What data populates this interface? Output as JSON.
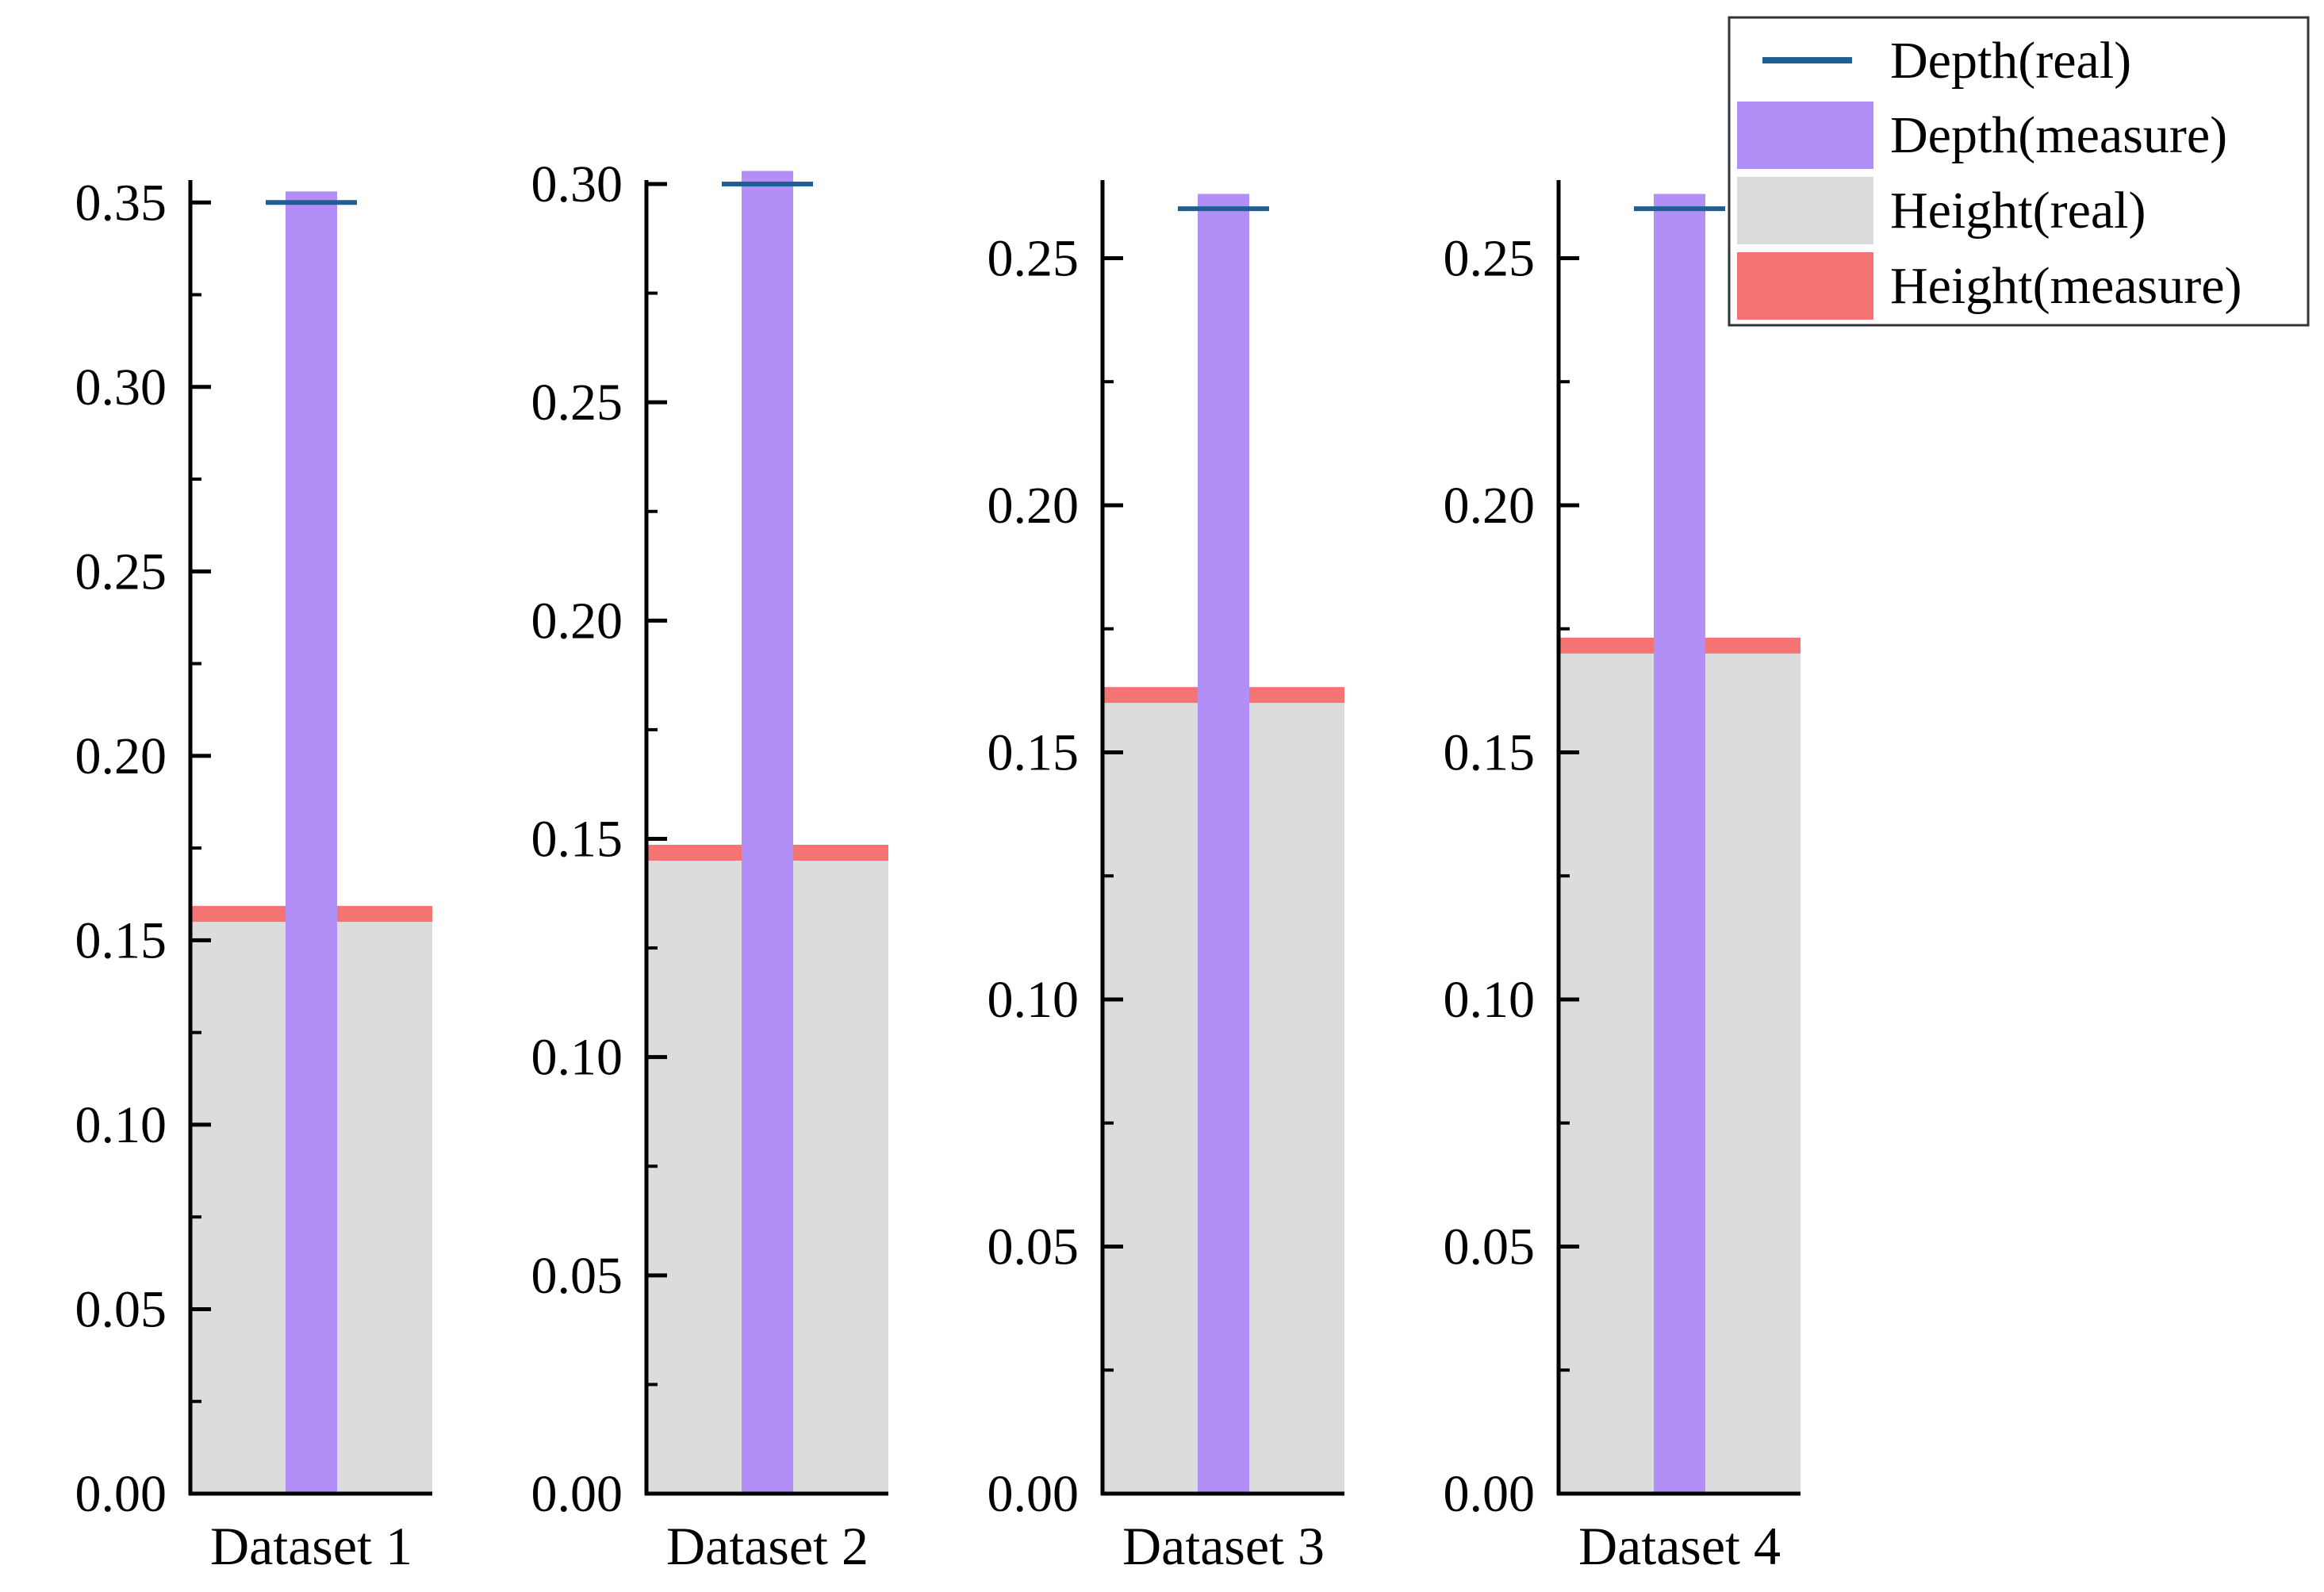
{
  "chart_data": {
    "type": "bar",
    "legend": {
      "placement": "top-right",
      "entries": [
        {
          "key": "depth_real",
          "label": "Depth(real)",
          "color": "#1f5f96",
          "kind": "line"
        },
        {
          "key": "depth_measure",
          "label": "Depth(measure)",
          "color": "#b28ef7",
          "kind": "box"
        },
        {
          "key": "height_real",
          "label": "Height(real)",
          "color": "#dcdcdc",
          "kind": "box"
        },
        {
          "key": "height_measure",
          "label": "Height(measure)",
          "color": "#f47373",
          "kind": "box"
        }
      ]
    },
    "panels": [
      {
        "category": "Dataset 1",
        "ylim": [
          0,
          0.355
        ],
        "yticks": [
          "0.00",
          "0.05",
          "0.10",
          "0.15",
          "0.20",
          "0.25",
          "0.30",
          "0.35"
        ],
        "tick_values": [
          0,
          0.05,
          0.1,
          0.15,
          0.2,
          0.25,
          0.3,
          0.35
        ],
        "depth_real": 0.35,
        "depth_measure": 0.353,
        "height_real": 0.155,
        "height_measure": 0.159
      },
      {
        "category": "Dataset 2",
        "ylim": [
          0,
          0.3
        ],
        "yticks": [
          "0.00",
          "0.05",
          "0.10",
          "0.15",
          "0.20",
          "0.25",
          "0.30"
        ],
        "tick_values": [
          0,
          0.05,
          0.1,
          0.15,
          0.2,
          0.25,
          0.3
        ],
        "depth_real": 0.3,
        "depth_measure": 0.303,
        "height_real": 0.145,
        "height_measure": 0.15
      },
      {
        "category": "Dataset 3",
        "ylim": [
          0,
          0.265
        ],
        "yticks": [
          "0.00",
          "0.05",
          "0.10",
          "0.15",
          "0.20",
          "0.25"
        ],
        "tick_values": [
          0,
          0.05,
          0.1,
          0.15,
          0.2,
          0.25
        ],
        "depth_real": 0.26,
        "depth_measure": 0.263,
        "height_real": 0.16,
        "height_measure": 0.164
      },
      {
        "category": "Dataset 4",
        "ylim": [
          0,
          0.265
        ],
        "yticks": [
          "0.00",
          "0.05",
          "0.10",
          "0.15",
          "0.20",
          "0.25"
        ],
        "tick_values": [
          0,
          0.05,
          0.1,
          0.15,
          0.2,
          0.25
        ],
        "depth_real": 0.26,
        "depth_measure": 0.263,
        "height_real": 0.17,
        "height_measure": 0.175
      }
    ]
  }
}
